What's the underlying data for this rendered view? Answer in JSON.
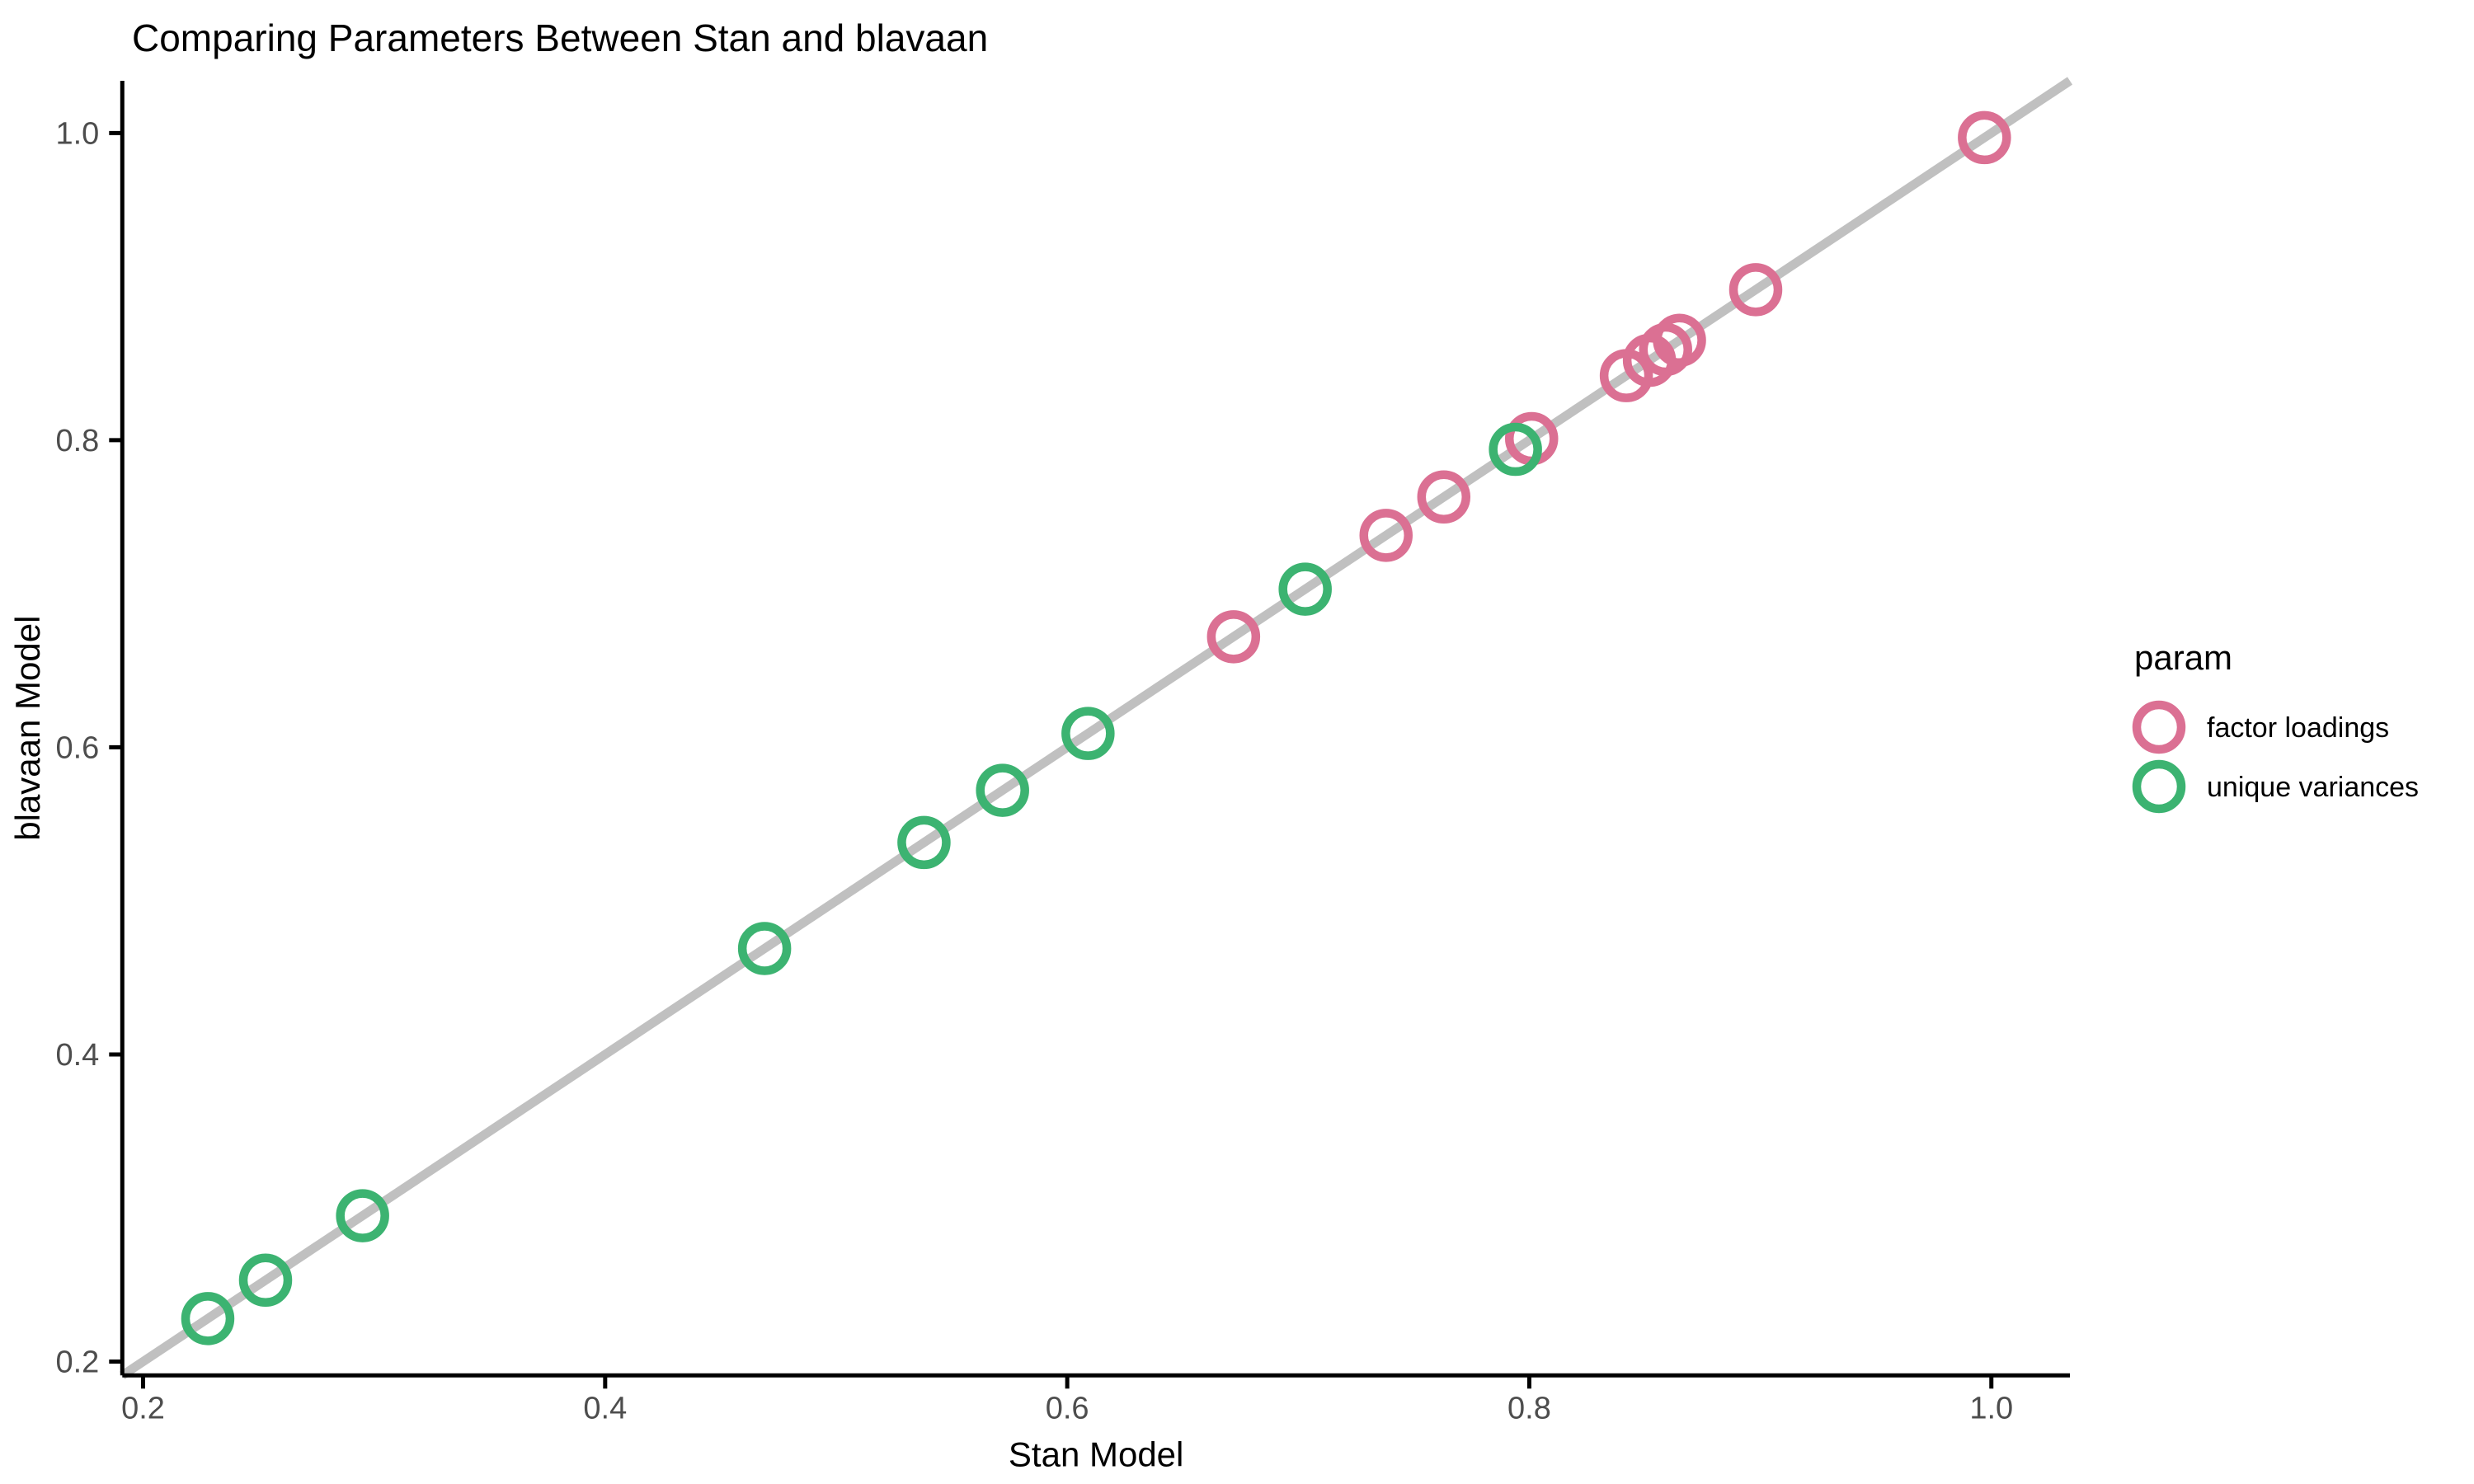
{
  "title": "Comparing Parameters Between Stan and blavaan",
  "chart_data": {
    "type": "scatter",
    "title": "Comparing Parameters Between Stan and blavaan",
    "xlabel": "Stan Model",
    "ylabel": "blavaan Model",
    "xlim": [
      0.191,
      1.034
    ],
    "ylim": [
      0.191,
      1.034
    ],
    "xticks": [
      0.2,
      0.4,
      0.6,
      0.8,
      1.0
    ],
    "yticks": [
      0.2,
      0.4,
      0.6,
      0.8,
      1.0
    ],
    "grid": false,
    "legend_title": "param",
    "legend_position": "right",
    "reference_line": {
      "type": "identity y=x",
      "color": "#c0c0c0"
    },
    "marker": {
      "shape": "open-circle",
      "radius": 27,
      "stroke_width": 10.5
    },
    "series": [
      {
        "name": "factor loadings",
        "color": "#DB7093",
        "points": [
          {
            "x": 0.672,
            "y": 0.672
          },
          {
            "x": 0.738,
            "y": 0.738
          },
          {
            "x": 0.763,
            "y": 0.763
          },
          {
            "x": 0.801,
            "y": 0.801
          },
          {
            "x": 0.842,
            "y": 0.842
          },
          {
            "x": 0.852,
            "y": 0.852
          },
          {
            "x": 0.859,
            "y": 0.859
          },
          {
            "x": 0.865,
            "y": 0.865
          },
          {
            "x": 0.898,
            "y": 0.898
          },
          {
            "x": 0.997,
            "y": 0.997
          }
        ]
      },
      {
        "name": "unique variances",
        "color": "#3CB371",
        "points": [
          {
            "x": 0.228,
            "y": 0.228
          },
          {
            "x": 0.253,
            "y": 0.253
          },
          {
            "x": 0.295,
            "y": 0.295
          },
          {
            "x": 0.469,
            "y": 0.469
          },
          {
            "x": 0.538,
            "y": 0.538
          },
          {
            "x": 0.572,
            "y": 0.572
          },
          {
            "x": 0.609,
            "y": 0.609
          },
          {
            "x": 0.703,
            "y": 0.703
          },
          {
            "x": 0.794,
            "y": 0.794
          }
        ]
      }
    ]
  }
}
